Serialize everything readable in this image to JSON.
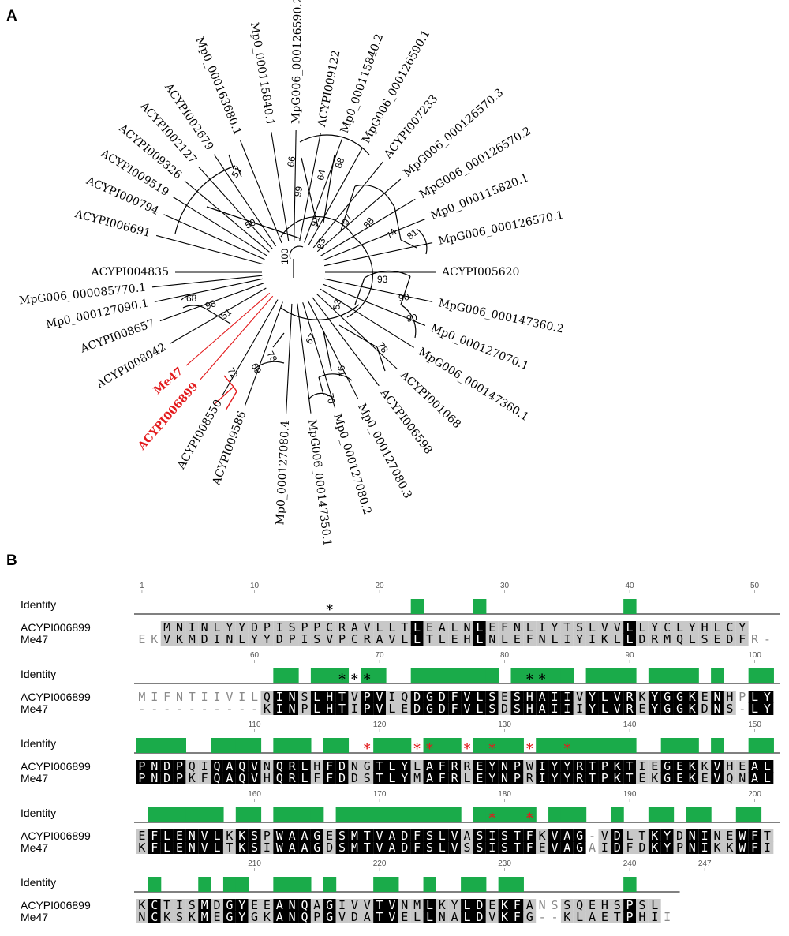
{
  "panel_a": {
    "label": "A",
    "root_bootstrap": "100",
    "highlight_color": "#e31a1c",
    "leaves": [
      {
        "text": "ACYPI004835",
        "angle": 180,
        "highlight": false
      },
      {
        "text": "ACYPI006691",
        "angle": 165,
        "highlight": false
      },
      {
        "text": "ACYPI000794",
        "angle": 156,
        "highlight": false
      },
      {
        "text": "ACYPI009519",
        "angle": 148,
        "highlight": false
      },
      {
        "text": "ACYPI009326",
        "angle": 140,
        "highlight": false
      },
      {
        "text": "ACYPI002127",
        "angle": 132,
        "highlight": false
      },
      {
        "text": "ACYPI002679",
        "angle": 124,
        "highlight": false
      },
      {
        "text": "Mp0_000163680.1",
        "angle": 112,
        "highlight": false
      },
      {
        "text": "Mp0_000115840.1",
        "angle": 99,
        "highlight": false
      },
      {
        "text": "MpG006_000126590.2",
        "angle": 89,
        "highlight": false
      },
      {
        "text": "ACYPI009122",
        "angle": 79,
        "highlight": false
      },
      {
        "text": "Mp0_000115840.2",
        "angle": 70,
        "highlight": false
      },
      {
        "text": "MpG006_000126590.1",
        "angle": 61,
        "highlight": false
      },
      {
        "text": "ACYPI007233",
        "angle": 51,
        "highlight": false
      },
      {
        "text": "MpG006_000126570.3",
        "angle": 41,
        "highlight": false
      },
      {
        "text": "MpG006_000126570.2",
        "angle": 31,
        "highlight": false
      },
      {
        "text": "Mp0_000115820.1",
        "angle": 22,
        "highlight": false
      },
      {
        "text": "MpG006_000126570.1",
        "angle": 12,
        "highlight": false
      },
      {
        "text": "ACYPI005620",
        "angle": 0,
        "highlight": false
      },
      {
        "text": "MpG006_000147360.2",
        "angle": -12,
        "highlight": false
      },
      {
        "text": "Mp0_000127070.1",
        "angle": -22,
        "highlight": false
      },
      {
        "text": "MpG006_000147360.1",
        "angle": -32,
        "highlight": false
      },
      {
        "text": "ACYPI001068",
        "angle": -43,
        "highlight": false
      },
      {
        "text": "ACYPI006598",
        "angle": -53,
        "highlight": false
      },
      {
        "text": "Mp0_000127080.3",
        "angle": -63,
        "highlight": false
      },
      {
        "text": "Mp0_000127080.2",
        "angle": -73,
        "highlight": false
      },
      {
        "text": "MpG006_000147350.1",
        "angle": -83,
        "highlight": false
      },
      {
        "text": "Mp0_000127080.4",
        "angle": -93,
        "highlight": false
      },
      {
        "text": "ACYPI009586",
        "angle": -110,
        "highlight": false
      },
      {
        "text": "ACYPI008550",
        "angle": -120,
        "highlight": false
      },
      {
        "text": "ACYPI006899",
        "angle": -131,
        "highlight": true
      },
      {
        "text": "Me47",
        "angle": -139,
        "highlight": true
      },
      {
        "text": "ACYPI008042",
        "angle": -150,
        "highlight": false
      },
      {
        "text": "ACYPI008657",
        "angle": -160,
        "highlight": false
      },
      {
        "text": "Mp0_000127090.1",
        "angle": -168,
        "highlight": false
      },
      {
        "text": "MpG006_000085770.1",
        "angle": -174,
        "highlight": false
      }
    ],
    "bootstraps": [
      {
        "text": "51"
      },
      {
        "text": "50"
      },
      {
        "text": "66"
      },
      {
        "text": "99"
      },
      {
        "text": "64"
      },
      {
        "text": "88"
      },
      {
        "text": "91"
      },
      {
        "text": "97"
      },
      {
        "text": "88"
      },
      {
        "text": "74"
      },
      {
        "text": "81"
      },
      {
        "text": "83"
      },
      {
        "text": "93"
      },
      {
        "text": "90"
      },
      {
        "text": "90"
      },
      {
        "text": "53"
      },
      {
        "text": "78"
      },
      {
        "text": "91"
      },
      {
        "text": "70"
      },
      {
        "text": "67"
      },
      {
        "text": "78"
      },
      {
        "text": "69"
      },
      {
        "text": "72"
      },
      {
        "text": "51"
      },
      {
        "text": "98"
      },
      {
        "text": "68"
      }
    ]
  },
  "panel_b": {
    "label": "B",
    "identity_label": "Identity",
    "identity_color": "#1aab4a",
    "seq1_name": "ACYPI006899",
    "seq2_name": "Me47",
    "blocks": [
      {
        "ruler": [
          "1",
          "10",
          "20",
          "30",
          "40",
          "50"
        ],
        "seq1": "  MNINLYYDPISPPCRAVLLTLEALNLEFNLIYTSLVVLLYCLYHLCY",
        "seq2": "EKVKMDINLYYDPISVPCRAVLLTLEHLNLEFNLIYIKLLDRMQLSEDFR-",
        "stars": [
          {
            "text": "*",
            "color": "#000000"
          }
        ]
      },
      {
        "ruler": [
          "60",
          "70",
          "80",
          "90",
          "100"
        ],
        "seq1": "MIFNTIIVILQINSLHTVPVIQDGDFVLSESHAIIVYLVRKYGGKENHPLY",
        "seq2": "----------KINPLHTIPVLEDGDFVLSDSHAIIIYLVREYGGKDNS-LY",
        "stars": [
          {
            "text": "*",
            "color": "#000000"
          },
          {
            "text": "*",
            "color": "#000000"
          },
          {
            "text": "*",
            "color": "#000000"
          },
          {
            "text": "*",
            "color": "#000000"
          },
          {
            "text": "*",
            "color": "#000000"
          }
        ]
      },
      {
        "ruler": [
          "110",
          "120",
          "130",
          "140",
          "150"
        ],
        "seq1": "PNDPQIQAQVNQRLHFDNGTLYLAFRREYNPWIYYRTPKTIEGEKKVHEAL",
        "seq2": "PNDPKFQAQVHQRLFFDDSTLYMAFRLEYNPRIYYRTPKTEKGEKEVQNAL",
        "stars": [
          {
            "text": "*",
            "color": "#e31a1c"
          },
          {
            "text": "*",
            "color": "#e31a1c"
          },
          {
            "text": "*",
            "color": "#e31a1c"
          },
          {
            "text": "*",
            "color": "#e31a1c"
          },
          {
            "text": "*",
            "color": "#e31a1c"
          },
          {
            "text": "*",
            "color": "#e31a1c"
          },
          {
            "text": "*",
            "color": "#e31a1c"
          }
        ]
      },
      {
        "ruler": [
          "160",
          "170",
          "180",
          "190",
          "200"
        ],
        "seq1": "EFLENVLKKSPWAAGESMTVADFSLVASISTFKVAG-VDLTKYDNINEWFT",
        "seq2": "KFLENVLTKSIWAAGDSMTVADFSLVSSISTFEVAGAIDFDKYPNIKKWFI",
        "stars": [
          {
            "text": "*",
            "color": "#e31a1c"
          },
          {
            "text": "*",
            "color": "#e31a1c"
          }
        ]
      },
      {
        "ruler": [
          "210",
          "220",
          "230",
          "240",
          "247"
        ],
        "seq1": "KCTISMDGYEEANQAGIVVTVNMLKYLDEKFANSSQEHSPSL",
        "seq2": "NCKSKMEGYGKANQPGVDATVELLNALDVKFG--KLAETPHII",
        "stars": []
      }
    ]
  }
}
